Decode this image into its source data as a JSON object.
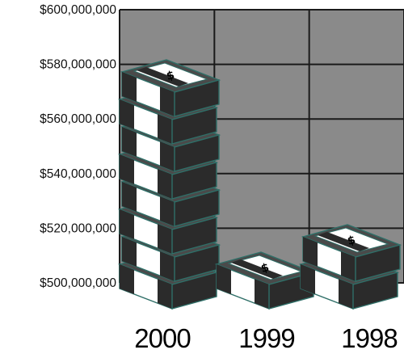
{
  "chart_data": {
    "type": "bar",
    "style": "pictograph-money-stacks",
    "categories": [
      "2000",
      "1999",
      "1998"
    ],
    "values": [
      581000000,
      506000000,
      521000000
    ],
    "ylim": [
      500000000,
      600000000
    ],
    "yticks": [
      "$500,000,000",
      "$520,000,000",
      "$540,000,000",
      "$560,000,000",
      "$580,000,000",
      "$600,000,000"
    ],
    "grid": true,
    "colors": {
      "plot_background": "#8a8a8a",
      "grid": "#1a1a1a",
      "bill_face": "#ffffff",
      "bill_band": "#2b2b2b",
      "bill_top": "#4a4a4a",
      "bill_outline": "#2f6f68",
      "money_icon": "dollar-sign-icon"
    }
  }
}
